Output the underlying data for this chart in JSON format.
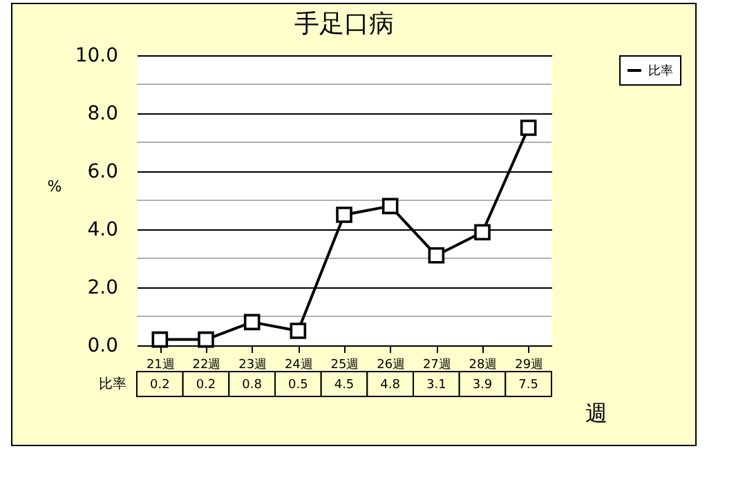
{
  "chart_data": {
    "type": "line",
    "title": "手足口病",
    "xlabel": "週",
    "ylabel": "%",
    "categories": [
      "21週",
      "22週",
      "23週",
      "24週",
      "25週",
      "26週",
      "27週",
      "28週",
      "29週"
    ],
    "series": [
      {
        "name": "比率",
        "color": "#000000",
        "values": [
          0.2,
          0.2,
          0.8,
          0.5,
          4.5,
          4.8,
          3.1,
          3.9,
          7.5
        ]
      }
    ],
    "ylim": [
      0,
      10
    ],
    "yticks": [
      {
        "value": 0,
        "label": "0.0"
      },
      {
        "value": 1,
        "label": null
      },
      {
        "value": 2,
        "label": "2.0"
      },
      {
        "value": 3,
        "label": null
      },
      {
        "value": 4,
        "label": "4.0"
      },
      {
        "value": 5,
        "label": null
      },
      {
        "value": 6,
        "label": "6.0"
      },
      {
        "value": 7,
        "label": null
      },
      {
        "value": 8,
        "label": "8.0"
      },
      {
        "value": 9,
        "label": null
      },
      {
        "value": 10,
        "label": "10.0"
      }
    ],
    "grid": "y",
    "legend": "top right",
    "marker": "square",
    "line_style": "solid",
    "data_labels": true
  }
}
